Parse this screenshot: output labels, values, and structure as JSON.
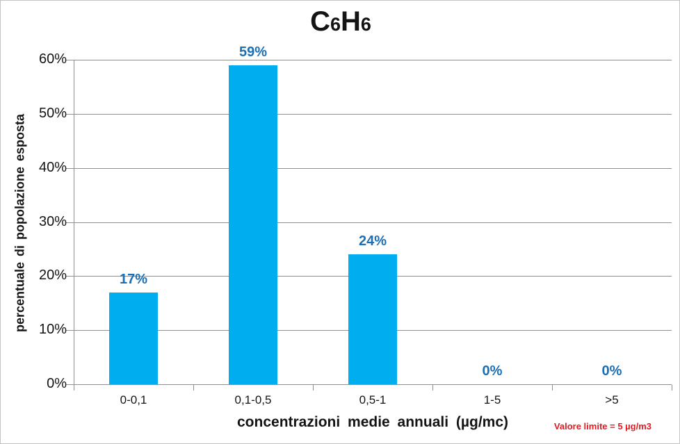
{
  "header": {
    "c1": "C",
    "s1": "6",
    "c2": "H",
    "s2": "6"
  },
  "chart_data": {
    "type": "bar",
    "title": "C6H6",
    "categories": [
      "0-0,1",
      "0,1-0,5",
      "0,5-1",
      "1-5",
      ">5"
    ],
    "values": [
      17,
      59,
      24,
      0,
      0
    ],
    "value_labels": [
      "17%",
      "59%",
      "24%",
      "0%",
      "0%"
    ],
    "xlabel": "concentrazioni medie annuali (µg/mc)",
    "ylabel": "percentuale di popolazione esposta",
    "ylim": [
      0,
      60
    ],
    "yticks": [
      "0%",
      "10%",
      "20%",
      "30%",
      "40%",
      "50%",
      "60%"
    ],
    "ytick_values": [
      0,
      10,
      20,
      30,
      40,
      50,
      60
    ],
    "grid": "horizontal",
    "legend": "none",
    "bar_color": "#00AEEF",
    "value_label_color": "#1B6FB5",
    "annotation": {
      "text": "Valore limite = 5 µg/m3",
      "color": "#E01B22"
    }
  }
}
